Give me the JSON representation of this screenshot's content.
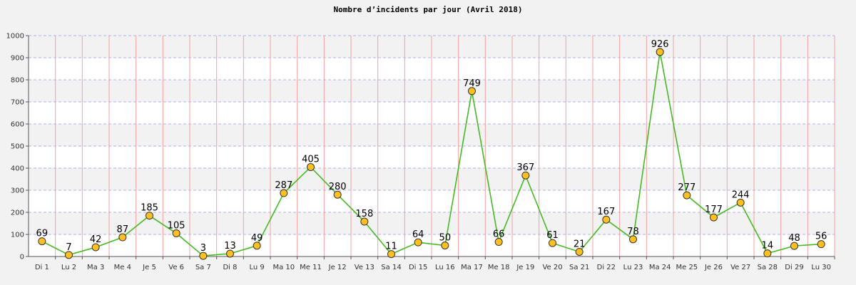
{
  "chart_data": {
    "type": "line",
    "title": "Nombre d’incidents par jour (Avril 2018)",
    "xlabel": "",
    "ylabel": "",
    "ylim": [
      0,
      1000
    ],
    "yticks": [
      "0",
      "100",
      "200",
      "300",
      "400",
      "500",
      "600",
      "700",
      "800",
      "900",
      "1000"
    ],
    "grid": true,
    "categories": [
      "Di 1",
      "Lu 2",
      "Ma 3",
      "Me 4",
      "Je 5",
      "Ve 6",
      "Sa 7",
      "Di 8",
      "Lu 9",
      "Ma 10",
      "Me 11",
      "Je 12",
      "Ve 13",
      "Sa 14",
      "Di 15",
      "Lu 16",
      "Ma 17",
      "Me 18",
      "Je 19",
      "Ve 20",
      "Sa 21",
      "Di 22",
      "Lu 23",
      "Ma 24",
      "Me 25",
      "Je 26",
      "Ve 27",
      "Sa 28",
      "Di 29",
      "Lu 30"
    ],
    "values": [
      69,
      7,
      42,
      87,
      185,
      105,
      3,
      13,
      49,
      287,
      405,
      280,
      158,
      11,
      64,
      50,
      749,
      66,
      367,
      61,
      21,
      167,
      78,
      926,
      277,
      177,
      244,
      14,
      48,
      56
    ],
    "colors": {
      "line": "#44bb22",
      "marker_fill": "#ffc020",
      "marker_stroke": "#333333",
      "vgrid": "#f4a0a0",
      "hgrid": "#b0b0ee",
      "band_light": "#ffffff",
      "band_dark": "#f2f2f2"
    }
  }
}
